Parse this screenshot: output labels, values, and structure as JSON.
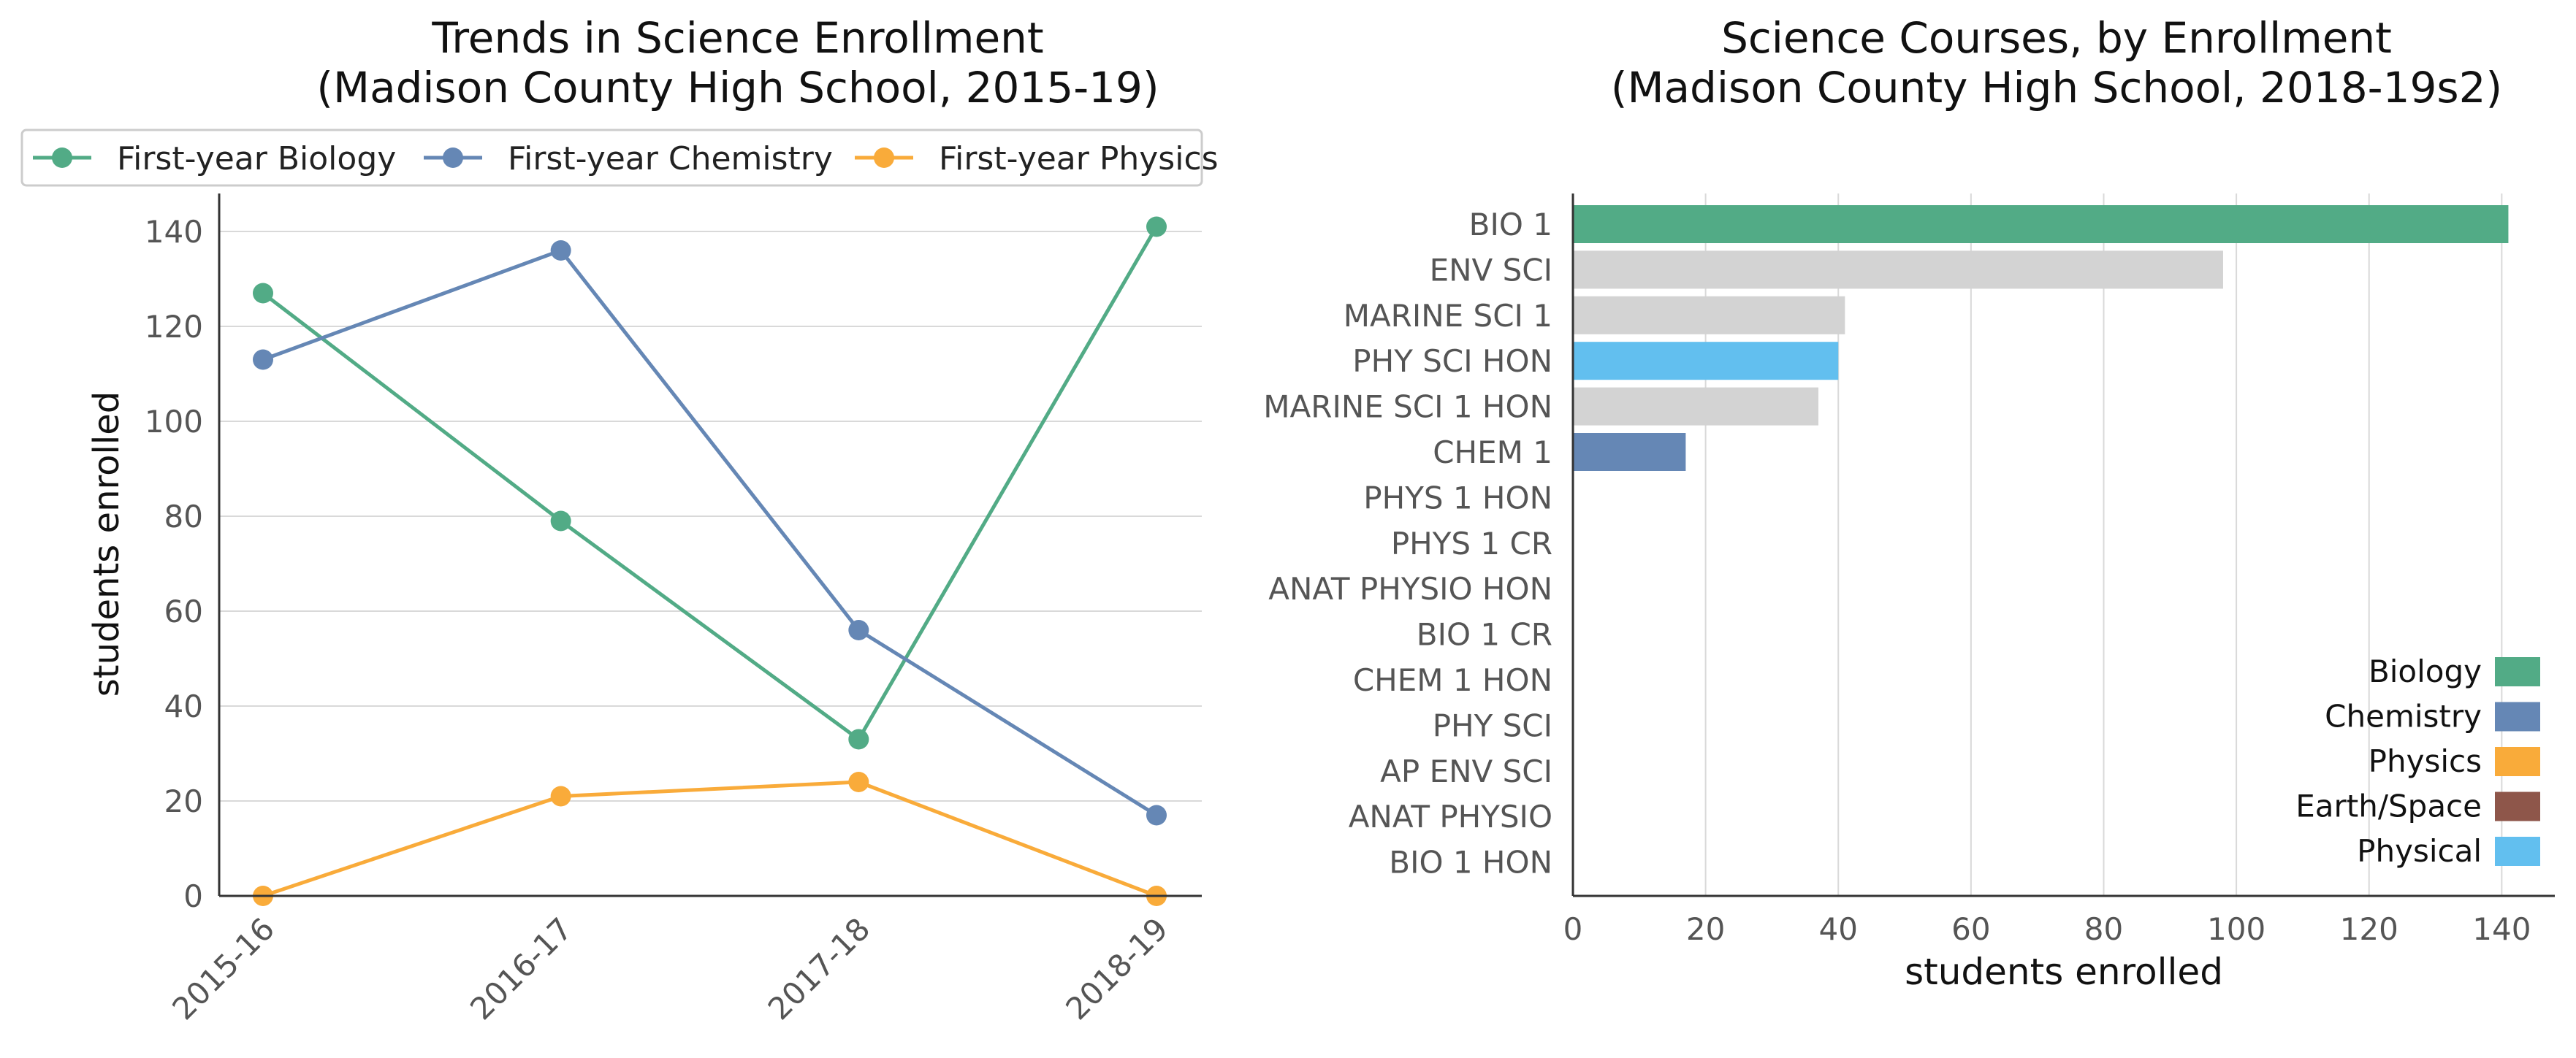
{
  "chart_data": [
    {
      "type": "line",
      "title": "Trends in Science Enrollment",
      "subtitle": "(Madison County High School, 2015-19)",
      "xlabel": "",
      "ylabel": "students enrolled",
      "categories": [
        "2015-16",
        "2016-17",
        "2017-18",
        "2018-19"
      ],
      "ylim": [
        0,
        148
      ],
      "yticks": [
        0,
        20,
        40,
        60,
        80,
        100,
        120,
        140
      ],
      "grid": "horizontal",
      "legend_position": "top",
      "series": [
        {
          "name": "First-year Biology",
          "color": "#52ab86",
          "values": [
            127,
            79,
            33,
            141
          ]
        },
        {
          "name": "First-year Chemistry",
          "color": "#6587b5",
          "values": [
            113,
            136,
            56,
            17
          ]
        },
        {
          "name": "First-year Physics",
          "color": "#f9ab3a",
          "values": [
            0,
            21,
            24,
            0
          ]
        }
      ]
    },
    {
      "type": "bar",
      "orientation": "horizontal",
      "title": "Science Courses, by Enrollment",
      "subtitle": "(Madison County High School, 2018-19s2)",
      "xlabel": "students enrolled",
      "ylabel": "",
      "xlim": [
        0,
        148
      ],
      "xticks": [
        0,
        20,
        40,
        60,
        80,
        100,
        120,
        140
      ],
      "grid": "vertical",
      "legend_position": "lower right",
      "categories": [
        "BIO 1",
        "ENV SCI",
        "MARINE SCI 1",
        "PHY SCI HON",
        "MARINE SCI 1 HON",
        "CHEM 1",
        "PHYS 1 HON",
        "PHYS 1 CR",
        "ANAT PHYSIO HON",
        "BIO 1 CR",
        "CHEM 1 HON",
        "PHY SCI",
        "AP ENV SCI",
        "ANAT PHYSIO",
        "BIO 1 HON"
      ],
      "values": [
        141,
        98,
        41,
        40,
        37,
        17,
        0,
        0,
        0,
        0,
        0,
        0,
        0,
        0,
        0
      ],
      "bar_colors": [
        "#52ab86",
        "#d3d3d3",
        "#d3d3d3",
        "#62bfef",
        "#d3d3d3",
        "#6587b5",
        "#d3d3d3",
        "#d3d3d3",
        "#d3d3d3",
        "#d3d3d3",
        "#d3d3d3",
        "#d3d3d3",
        "#d3d3d3",
        "#d3d3d3",
        "#d3d3d3"
      ],
      "legend": [
        {
          "name": "Biology",
          "color": "#52ab86"
        },
        {
          "name": "Chemistry",
          "color": "#6587b5"
        },
        {
          "name": "Physics",
          "color": "#f9ab3a"
        },
        {
          "name": "Earth/Space",
          "color": "#8e564a"
        },
        {
          "name": "Physical",
          "color": "#62bfef"
        }
      ]
    }
  ]
}
